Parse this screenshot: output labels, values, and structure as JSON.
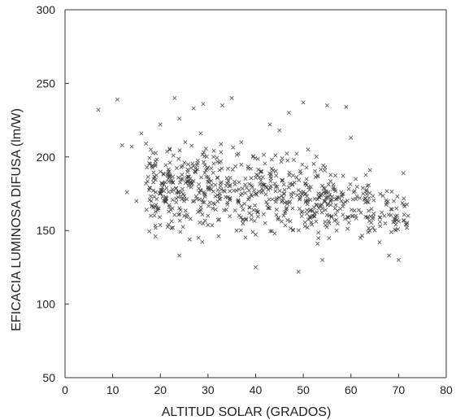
{
  "chart_data": {
    "type": "scatter",
    "title": "",
    "xlabel": "ALTITUD SOLAR (GRADOS)",
    "ylabel": "EFICACIA  LUMINOSA  DIFUSA  (lm/W)",
    "xlim": [
      0,
      80
    ],
    "ylim": [
      50,
      300
    ],
    "xticks": [
      0,
      10,
      20,
      30,
      40,
      50,
      60,
      70,
      80
    ],
    "yticks": [
      50,
      100,
      150,
      200,
      250,
      300
    ],
    "grid": false,
    "marker": "x",
    "color": "#333333",
    "series": [
      {
        "x": [
          7,
          11,
          12,
          13,
          14,
          15,
          16,
          17,
          17,
          18,
          18,
          19,
          19,
          20,
          21,
          22,
          23,
          24,
          24,
          25,
          26,
          27,
          28,
          29,
          30,
          31,
          33,
          35,
          36,
          37,
          38,
          39,
          40,
          40,
          41,
          42,
          43,
          44,
          45,
          46,
          47,
          48,
          49,
          50,
          51,
          52,
          53,
          54,
          55,
          56,
          57,
          58,
          59,
          60,
          61,
          62,
          63,
          64,
          65,
          66,
          67,
          68,
          69,
          70,
          71,
          72
        ],
        "y": [
          232,
          239,
          208,
          176,
          207,
          170,
          216,
          209,
          182,
          160,
          205,
          195,
          146,
          222,
          170,
          205,
          240,
          226,
          133,
          160,
          182,
          233,
          145,
          236,
          160,
          165,
          235,
          240,
          150,
          210,
          158,
          192,
          125,
          175,
          190,
          155,
          222,
          148,
          218,
          175,
          230,
          198,
          122,
          237,
          205,
          160,
          141,
          130,
          235,
          171,
          150,
          170,
          234,
          213,
          160,
          145,
          172,
          191,
          150,
          142,
          160,
          133,
          170,
          130,
          189,
          160
        ]
      }
    ],
    "clusters": [
      {
        "x": [
          17,
          24
        ],
        "y": [
          140,
          215
        ],
        "n": 120
      },
      {
        "x": [
          24,
          33
        ],
        "y": [
          135,
          225
        ],
        "n": 150
      },
      {
        "x": [
          33,
          42
        ],
        "y": [
          140,
          215
        ],
        "n": 110
      },
      {
        "x": [
          42,
          50
        ],
        "y": [
          140,
          210
        ],
        "n": 100
      },
      {
        "x": [
          50,
          56
        ],
        "y": [
          135,
          205
        ],
        "n": 100
      },
      {
        "x": [
          56,
          65
        ],
        "y": [
          135,
          195
        ],
        "n": 85
      },
      {
        "x": [
          66,
          72
        ],
        "y": [
          135,
          185
        ],
        "n": 45
      }
    ]
  }
}
